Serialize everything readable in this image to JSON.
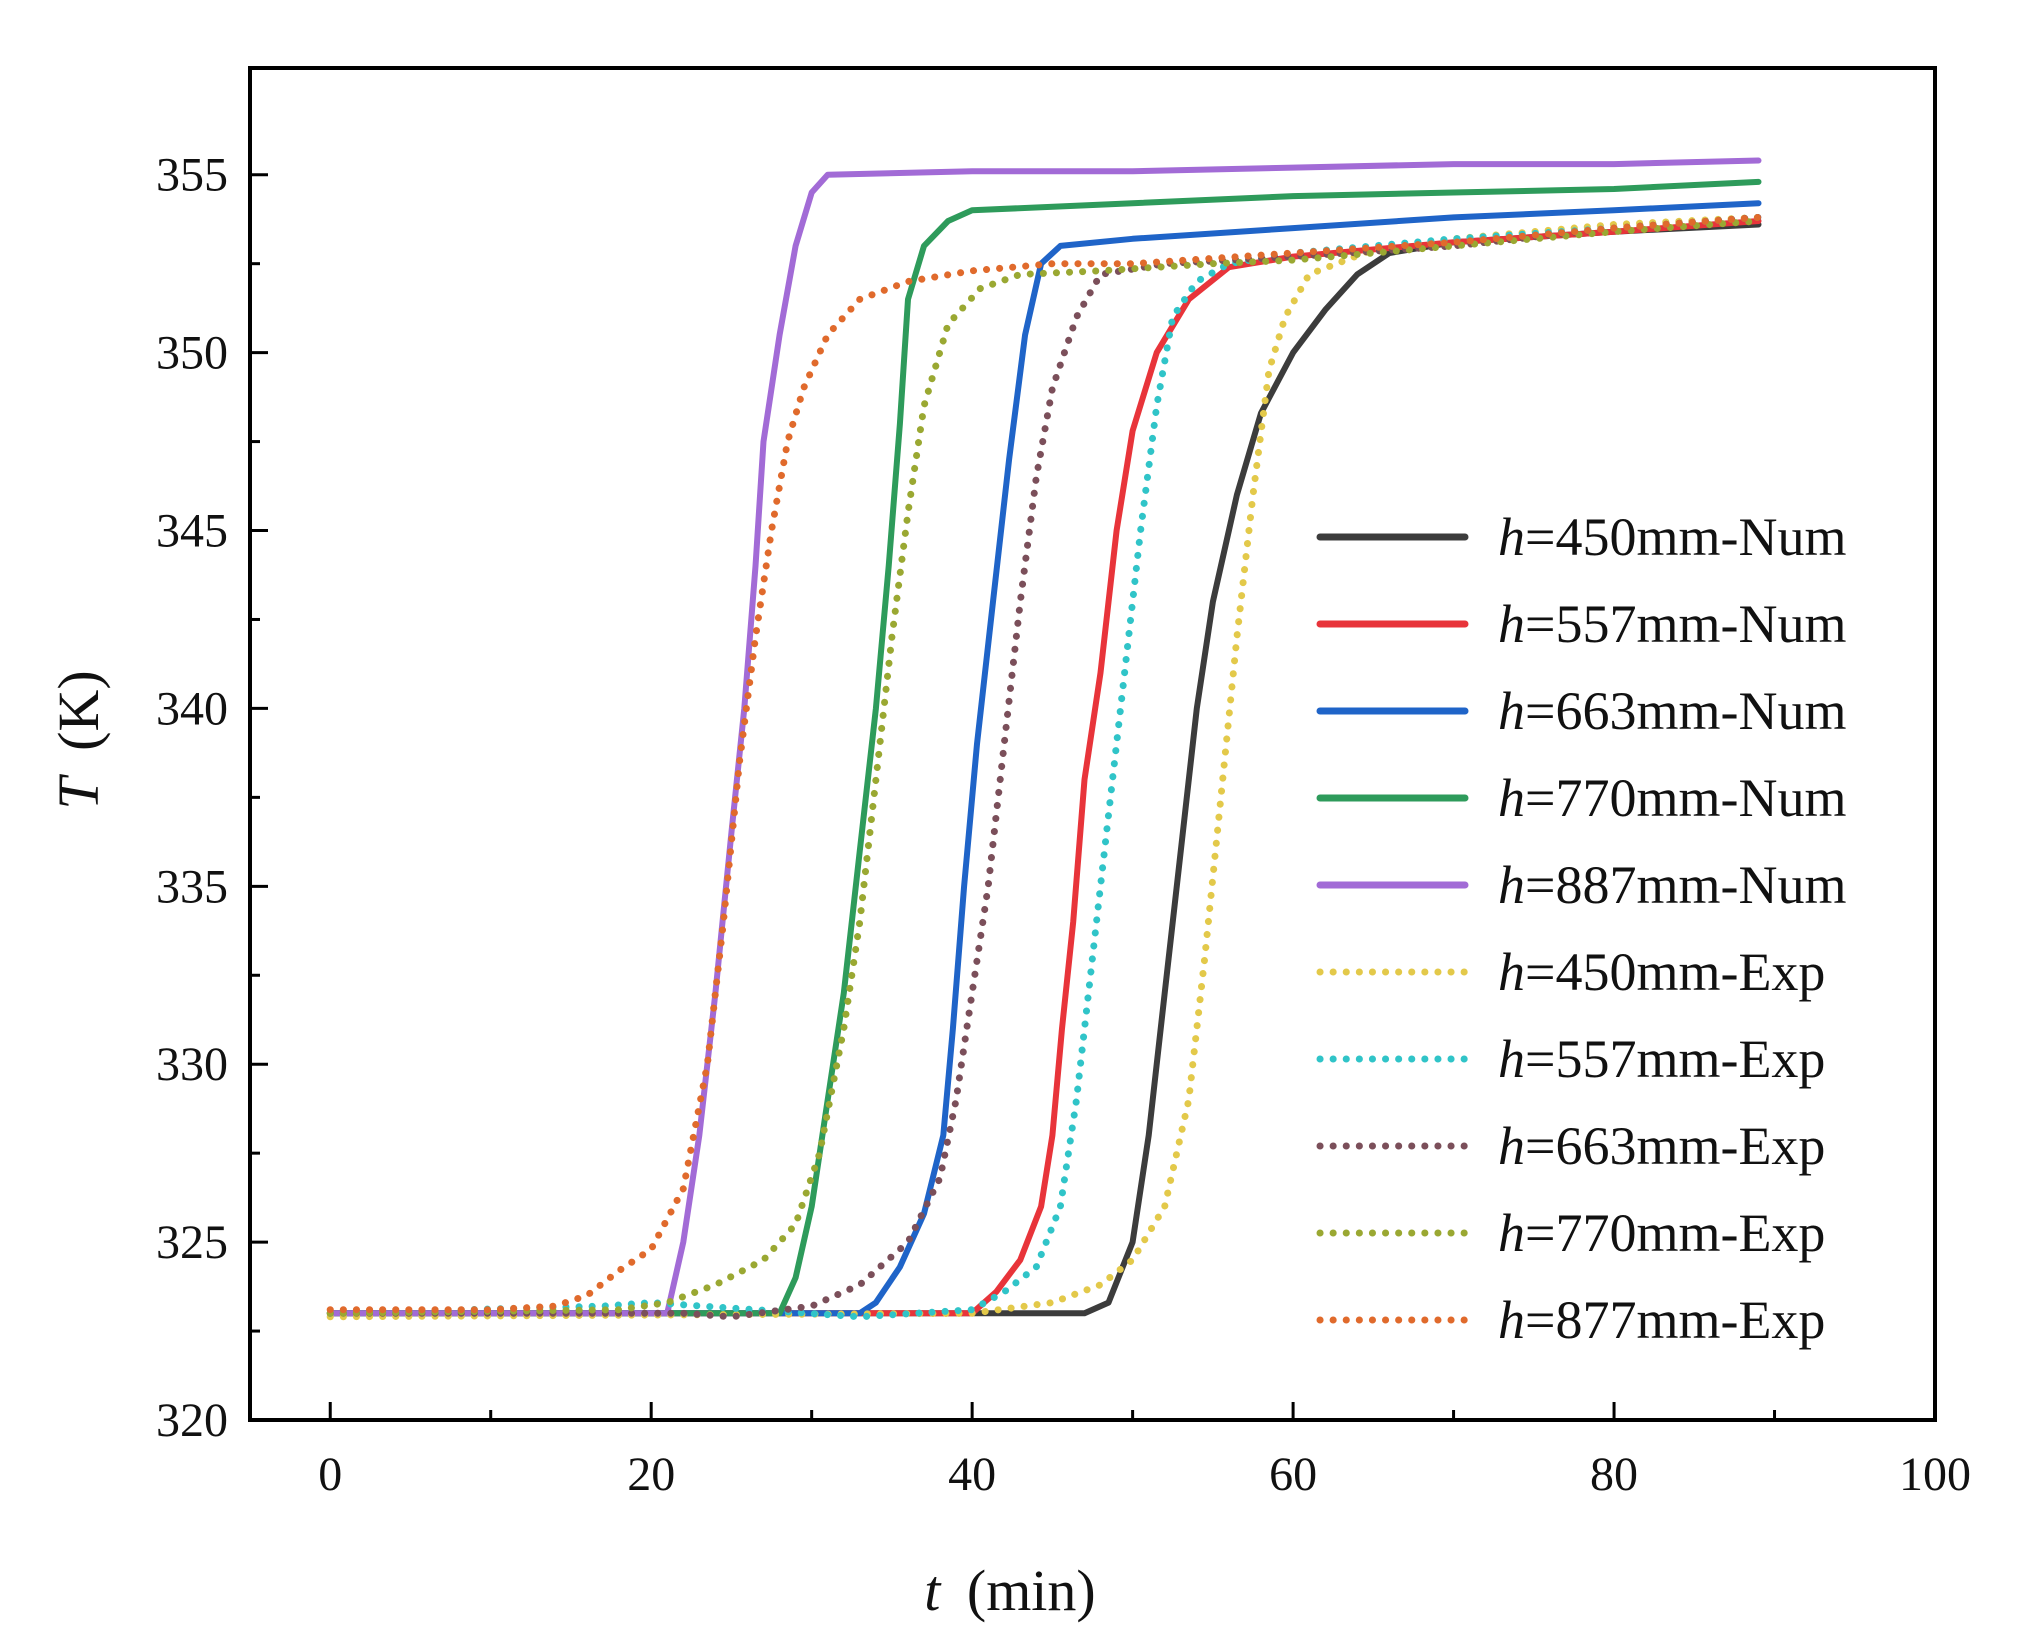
{
  "chart_data": {
    "type": "line",
    "title": "",
    "xlabel_var": "t",
    "xlabel_unit": "(min)",
    "ylabel_var": "T",
    "ylabel_unit": "(K)",
    "xlim": [
      -5,
      100
    ],
    "ylim": [
      320,
      358
    ],
    "xticks": [
      0,
      20,
      40,
      60,
      80,
      100
    ],
    "yticks": [
      320,
      325,
      330,
      335,
      340,
      345,
      350,
      355
    ],
    "xtick_labels": [
      "0",
      "20",
      "40",
      "60",
      "80",
      "100"
    ],
    "ytick_labels": [
      "320",
      "325",
      "330",
      "335",
      "340",
      "345",
      "350",
      "355"
    ],
    "legend_position": "center-right",
    "grid": false,
    "series": [
      {
        "var": "h",
        "label": "=450mm-Num",
        "style": "solid",
        "color": "#3c3c3c",
        "points": [
          [
            0,
            323
          ],
          [
            47,
            323
          ],
          [
            48.5,
            323.3
          ],
          [
            50,
            325
          ],
          [
            51,
            328
          ],
          [
            52,
            332
          ],
          [
            53,
            336
          ],
          [
            54,
            340
          ],
          [
            55,
            343
          ],
          [
            56.5,
            346
          ],
          [
            58,
            348.3
          ],
          [
            60,
            350
          ],
          [
            62,
            351.2
          ],
          [
            64,
            352.2
          ],
          [
            66,
            352.8
          ],
          [
            70,
            353.1
          ],
          [
            80,
            353.4
          ],
          [
            89,
            353.6
          ]
        ]
      },
      {
        "var": "h",
        "label": "=557mm-Num",
        "style": "solid",
        "color": "#e8343a",
        "points": [
          [
            0,
            323
          ],
          [
            40,
            323
          ],
          [
            41.5,
            323.6
          ],
          [
            43,
            324.5
          ],
          [
            44.3,
            326
          ],
          [
            45,
            328
          ],
          [
            45.6,
            331
          ],
          [
            46.3,
            334
          ],
          [
            47,
            338
          ],
          [
            48,
            341
          ],
          [
            49,
            345
          ],
          [
            50,
            347.8
          ],
          [
            51.5,
            350
          ],
          [
            53.5,
            351.5
          ],
          [
            56,
            352.4
          ],
          [
            60,
            352.7
          ],
          [
            70,
            353.1
          ],
          [
            80,
            353.4
          ],
          [
            89,
            353.7
          ]
        ]
      },
      {
        "var": "h",
        "label": "=663mm-Num",
        "style": "solid",
        "color": "#1f64c8",
        "points": [
          [
            0,
            323
          ],
          [
            33,
            323
          ],
          [
            34,
            323.3
          ],
          [
            35.5,
            324.3
          ],
          [
            37,
            325.8
          ],
          [
            38.2,
            328
          ],
          [
            38.8,
            331
          ],
          [
            39.5,
            335
          ],
          [
            40.3,
            339
          ],
          [
            41.3,
            343
          ],
          [
            42.3,
            347
          ],
          [
            43.3,
            350.5
          ],
          [
            44.3,
            352.5
          ],
          [
            45.5,
            353
          ],
          [
            50,
            353.2
          ],
          [
            60,
            353.5
          ],
          [
            70,
            353.8
          ],
          [
            80,
            354
          ],
          [
            89,
            354.2
          ]
        ]
      },
      {
        "var": "h",
        "label": "=770mm-Num",
        "style": "solid",
        "color": "#2e9b5b",
        "points": [
          [
            0,
            323
          ],
          [
            28,
            323
          ],
          [
            29,
            324
          ],
          [
            30,
            326
          ],
          [
            31,
            329
          ],
          [
            32,
            332
          ],
          [
            33,
            336
          ],
          [
            34,
            340
          ],
          [
            34.8,
            344
          ],
          [
            35.5,
            348
          ],
          [
            36,
            351.5
          ],
          [
            37,
            353
          ],
          [
            38.5,
            353.7
          ],
          [
            40,
            354
          ],
          [
            50,
            354.2
          ],
          [
            60,
            354.4
          ],
          [
            70,
            354.5
          ],
          [
            80,
            354.6
          ],
          [
            89,
            354.8
          ]
        ]
      },
      {
        "var": "h",
        "label": "=887mm-Num",
        "style": "solid",
        "color": "#a26bd6",
        "points": [
          [
            0,
            323
          ],
          [
            21,
            323
          ],
          [
            22,
            325
          ],
          [
            23,
            328
          ],
          [
            24,
            332
          ],
          [
            25,
            336.5
          ],
          [
            25.8,
            340
          ],
          [
            26.5,
            344
          ],
          [
            27,
            347.5
          ],
          [
            28,
            350.5
          ],
          [
            29,
            353
          ],
          [
            30,
            354.5
          ],
          [
            31,
            355
          ],
          [
            40,
            355.1
          ],
          [
            50,
            355.1
          ],
          [
            60,
            355.2
          ],
          [
            70,
            355.3
          ],
          [
            80,
            355.3
          ],
          [
            89,
            355.4
          ]
        ]
      },
      {
        "var": "h",
        "label": "=450mm-Exp",
        "style": "dotted",
        "color": "#e3c94a",
        "points": [
          [
            0,
            322.9
          ],
          [
            40,
            323
          ],
          [
            45,
            323.3
          ],
          [
            48,
            323.8
          ],
          [
            50,
            324.5
          ],
          [
            52,
            326
          ],
          [
            53.5,
            329
          ],
          [
            54.5,
            333
          ],
          [
            55.5,
            337.5
          ],
          [
            56.5,
            342
          ],
          [
            57.5,
            346
          ],
          [
            58.5,
            349.5
          ],
          [
            59.5,
            351
          ],
          [
            61,
            352.2
          ],
          [
            65,
            352.9
          ],
          [
            70,
            353.2
          ],
          [
            80,
            353.6
          ],
          [
            89,
            353.8
          ]
        ]
      },
      {
        "var": "h",
        "label": "=557mm-Exp",
        "style": "dotted",
        "color": "#30c4c8",
        "points": [
          [
            0,
            323
          ],
          [
            17,
            323.2
          ],
          [
            20,
            323.3
          ],
          [
            33,
            322.9
          ],
          [
            40,
            323.1
          ],
          [
            42,
            323.6
          ],
          [
            44,
            324.3
          ],
          [
            45.5,
            326
          ],
          [
            46.5,
            329
          ],
          [
            47.5,
            333
          ],
          [
            48.5,
            337
          ],
          [
            49.5,
            341
          ],
          [
            50.5,
            345
          ],
          [
            51.5,
            348.5
          ],
          [
            52.5,
            351
          ],
          [
            54,
            352
          ],
          [
            56,
            352.5
          ],
          [
            60,
            352.8
          ],
          [
            70,
            353.2
          ],
          [
            80,
            353.5
          ],
          [
            89,
            353.8
          ]
        ]
      },
      {
        "var": "h",
        "label": "=663mm-Exp",
        "style": "dotted",
        "color": "#7b4f5a",
        "points": [
          [
            0,
            323
          ],
          [
            22,
            323
          ],
          [
            25,
            322.9
          ],
          [
            30,
            323.2
          ],
          [
            33,
            323.8
          ],
          [
            36,
            325
          ],
          [
            38,
            326.8
          ],
          [
            39,
            329
          ],
          [
            40,
            332
          ],
          [
            41,
            335
          ],
          [
            42,
            339
          ],
          [
            43,
            343
          ],
          [
            44,
            346.5
          ],
          [
            45,
            349
          ],
          [
            46.5,
            351
          ],
          [
            48,
            352.2
          ],
          [
            52,
            352.5
          ],
          [
            60,
            352.7
          ],
          [
            70,
            353
          ],
          [
            80,
            353.5
          ],
          [
            89,
            353.8
          ]
        ]
      },
      {
        "var": "h",
        "label": "=770mm-Exp",
        "style": "dotted",
        "color": "#9aa832",
        "points": [
          [
            0,
            323
          ],
          [
            18,
            323.1
          ],
          [
            21,
            323.3
          ],
          [
            24,
            323.8
          ],
          [
            27,
            324.5
          ],
          [
            29,
            325.5
          ],
          [
            30.5,
            327.5
          ],
          [
            32,
            331
          ],
          [
            33,
            334
          ],
          [
            34,
            338
          ],
          [
            35,
            342
          ],
          [
            36,
            345.5
          ],
          [
            37,
            348.5
          ],
          [
            38.5,
            350.8
          ],
          [
            40.5,
            351.8
          ],
          [
            43,
            352.2
          ],
          [
            48,
            352.3
          ],
          [
            55,
            352.5
          ],
          [
            60,
            352.6
          ],
          [
            70,
            353
          ],
          [
            80,
            353.4
          ],
          [
            89,
            353.7
          ]
        ]
      },
      {
        "var": "h",
        "label": "=877mm-Exp",
        "style": "dotted",
        "color": "#e06a2c",
        "points": [
          [
            0,
            323.1
          ],
          [
            10,
            323.1
          ],
          [
            14,
            323.2
          ],
          [
            16,
            323.5
          ],
          [
            18,
            324.2
          ],
          [
            20,
            324.8
          ],
          [
            22,
            326.5
          ],
          [
            23.5,
            330
          ],
          [
            24.5,
            334
          ],
          [
            25.5,
            338.5
          ],
          [
            26.5,
            342
          ],
          [
            27.5,
            345
          ],
          [
            28.5,
            347.5
          ],
          [
            29.5,
            349
          ],
          [
            31,
            350.5
          ],
          [
            33,
            351.5
          ],
          [
            36,
            352
          ],
          [
            40,
            352.3
          ],
          [
            45,
            352.5
          ],
          [
            50,
            352.5
          ],
          [
            60,
            352.8
          ],
          [
            70,
            353.1
          ],
          [
            80,
            353.5
          ],
          [
            89,
            353.8
          ]
        ]
      }
    ]
  }
}
